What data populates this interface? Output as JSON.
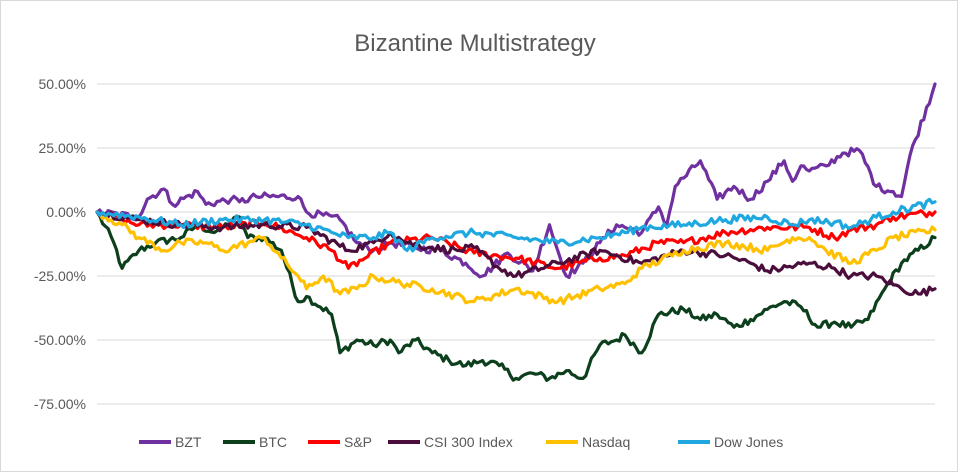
{
  "chart_data": {
    "type": "line",
    "title": "Bizantine Multistrategy",
    "xlabel": "",
    "ylabel": "",
    "ylim": [
      -0.75,
      0.5
    ],
    "y_ticks": [
      0.5,
      0.25,
      0,
      -0.25,
      -0.5,
      -0.75
    ],
    "y_tick_labels": [
      "50.00%",
      "25.00%",
      "0.00%",
      "-25.00%",
      "-50.00%",
      "-75.00%"
    ],
    "x_range": [
      0,
      100
    ],
    "grid": "horizontal",
    "legend_position": "bottom",
    "series": [
      {
        "name": "BZT",
        "color": "#7030a0",
        "x": [
          0,
          5,
          6,
          8,
          9,
          12,
          13,
          16,
          17,
          19,
          24,
          25,
          29,
          31,
          33,
          35,
          38,
          41,
          44,
          46,
          49,
          52,
          54,
          56,
          58,
          60,
          62,
          65,
          67,
          68,
          69,
          72,
          74,
          76,
          78,
          80,
          82,
          83,
          84,
          85,
          87,
          89,
          91,
          93,
          95,
          96,
          97,
          100
        ],
        "y": [
          0,
          -0.02,
          0.05,
          0.09,
          0.03,
          0.08,
          0.03,
          0.05,
          0.04,
          0.06,
          0.06,
          0,
          -0.03,
          -0.12,
          -0.15,
          -0.12,
          -0.14,
          -0.15,
          -0.2,
          -0.25,
          -0.16,
          -0.23,
          -0.05,
          -0.25,
          -0.2,
          -0.12,
          -0.05,
          -0.08,
          0.02,
          -0.05,
          0.1,
          0.2,
          0.05,
          0.1,
          0.05,
          0.12,
          0.2,
          0.12,
          0.18,
          0.16,
          0.18,
          0.23,
          0.24,
          0.1,
          0.08,
          0.06,
          0.22,
          0.5
        ]
      },
      {
        "name": "BTC",
        "color": "#0c3f1c",
        "x": [
          0,
          2,
          3,
          5,
          7,
          10,
          12,
          14,
          17,
          18,
          20,
          22,
          24,
          25,
          28,
          29,
          31,
          33,
          35,
          36,
          38,
          40,
          42,
          44,
          46,
          48,
          50,
          52,
          54,
          56,
          58,
          60,
          62,
          63,
          65,
          67,
          70,
          72,
          74,
          76,
          78,
          80,
          82,
          84,
          86,
          88,
          90,
          92,
          94,
          96,
          100
        ],
        "y": [
          0,
          -0.12,
          -0.22,
          -0.15,
          -0.12,
          -0.1,
          -0.05,
          -0.08,
          -0.02,
          -0.1,
          -0.1,
          -0.15,
          -0.35,
          -0.33,
          -0.4,
          -0.55,
          -0.5,
          -0.52,
          -0.5,
          -0.55,
          -0.5,
          -0.55,
          -0.58,
          -0.6,
          -0.58,
          -0.6,
          -0.65,
          -0.63,
          -0.65,
          -0.62,
          -0.65,
          -0.52,
          -0.5,
          -0.48,
          -0.55,
          -0.4,
          -0.38,
          -0.42,
          -0.4,
          -0.45,
          -0.42,
          -0.38,
          -0.35,
          -0.37,
          -0.45,
          -0.43,
          -0.45,
          -0.42,
          -0.3,
          -0.2,
          -0.1
        ]
      },
      {
        "name": "S&P",
        "color": "#ff0000",
        "x": [
          0,
          5,
          10,
          15,
          20,
          25,
          28,
          30,
          32,
          35,
          40,
          45,
          50,
          55,
          60,
          63,
          67,
          70,
          75,
          80,
          85,
          88,
          90,
          93,
          95,
          100
        ],
        "y": [
          0,
          -0.05,
          -0.05,
          -0.06,
          -0.04,
          -0.1,
          -0.15,
          -0.22,
          -0.18,
          -0.12,
          -0.1,
          -0.16,
          -0.18,
          -0.22,
          -0.18,
          -0.17,
          -0.12,
          -0.12,
          -0.08,
          -0.06,
          -0.06,
          -0.1,
          -0.07,
          -0.05,
          -0.02,
          0
        ]
      },
      {
        "name": "CSI 300 Index",
        "color": "#4b0e3c",
        "x": [
          0,
          5,
          10,
          15,
          20,
          25,
          30,
          33,
          35,
          37,
          40,
          43,
          45,
          48,
          50,
          55,
          60,
          62,
          65,
          70,
          75,
          78,
          80,
          85,
          88,
          90,
          93,
          96,
          98,
          100
        ],
        "y": [
          0,
          -0.03,
          -0.05,
          -0.06,
          -0.05,
          -0.06,
          -0.15,
          -0.12,
          -0.08,
          -0.12,
          -0.14,
          -0.15,
          -0.14,
          -0.22,
          -0.25,
          -0.2,
          -0.15,
          -0.17,
          -0.2,
          -0.15,
          -0.17,
          -0.2,
          -0.23,
          -0.2,
          -0.22,
          -0.25,
          -0.25,
          -0.3,
          -0.32,
          -0.3
        ]
      },
      {
        "name": "Nasdaq",
        "color": "#ffc000",
        "x": [
          0,
          3,
          5,
          8,
          10,
          13,
          15,
          18,
          20,
          22,
          24,
          25,
          27,
          29,
          31,
          33,
          35,
          40,
          45,
          50,
          55,
          60,
          63,
          65,
          70,
          75,
          80,
          83,
          85,
          87,
          90,
          93,
          95,
          100
        ],
        "y": [
          0,
          -0.05,
          -0.1,
          -0.15,
          -0.12,
          -0.12,
          -0.15,
          -0.12,
          -0.1,
          -0.18,
          -0.25,
          -0.3,
          -0.25,
          -0.32,
          -0.3,
          -0.25,
          -0.27,
          -0.3,
          -0.35,
          -0.3,
          -0.35,
          -0.3,
          -0.28,
          -0.22,
          -0.15,
          -0.12,
          -0.15,
          -0.1,
          -0.1,
          -0.15,
          -0.2,
          -0.15,
          -0.1,
          -0.07
        ]
      },
      {
        "name": "Dow Jones",
        "color": "#1fa8e0",
        "x": [
          0,
          5,
          10,
          15,
          20,
          25,
          28,
          30,
          33,
          35,
          37,
          40,
          45,
          50,
          55,
          60,
          63,
          65,
          70,
          75,
          80,
          83,
          85,
          88,
          90,
          93,
          95,
          100
        ],
        "y": [
          0,
          -0.02,
          -0.05,
          -0.03,
          -0.03,
          -0.05,
          -0.08,
          -0.1,
          -0.1,
          -0.08,
          -0.15,
          -0.1,
          -0.08,
          -0.1,
          -0.12,
          -0.1,
          -0.08,
          -0.06,
          -0.05,
          -0.03,
          -0.02,
          -0.05,
          -0.03,
          -0.04,
          -0.06,
          -0.02,
          0,
          0.04
        ]
      }
    ]
  }
}
